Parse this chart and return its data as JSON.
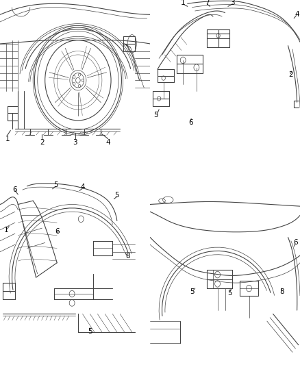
{
  "background_color": "#ffffff",
  "fig_width": 4.38,
  "fig_height": 5.33,
  "dpi": 100,
  "line_color": "#444444",
  "label_color": "#000000",
  "lw_main": 0.8,
  "lw_thin": 0.5,
  "label_fontsize": 7.5
}
